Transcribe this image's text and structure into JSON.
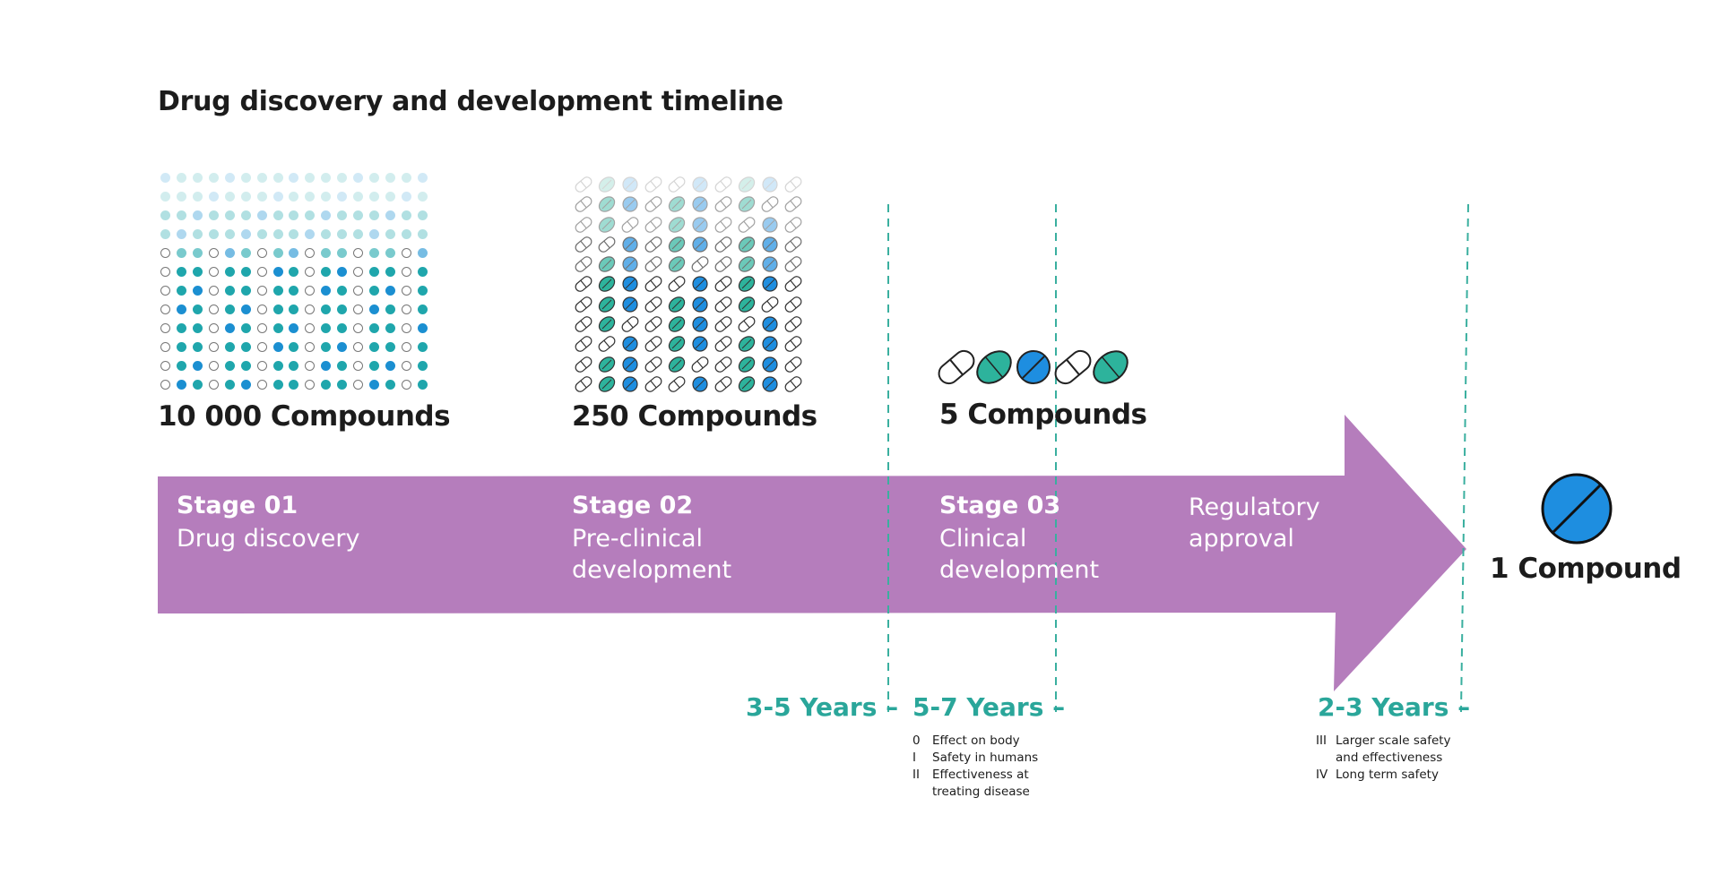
{
  "title": "Drug discovery and development timeline",
  "colors": {
    "arrow": "#b57dbc",
    "teal": "#2aa69a",
    "dashed_line": "#3aaf9f",
    "teal_dot": "#1fa6ac",
    "blue_dot": "#1b8fd1",
    "pill_blue": "#1e8ee0",
    "pill_green": "#2db39c"
  },
  "counts": {
    "stage1": "10 000 Compounds",
    "stage2": "250 Compounds",
    "stage3": "5 Compounds",
    "final": "1 Compound"
  },
  "stages": [
    {
      "number": "Stage 01",
      "name": "Drug discovery"
    },
    {
      "number": "Stage 02",
      "name": "Pre-clinical development"
    },
    {
      "number": "Stage 03",
      "name": "Clinical development"
    }
  ],
  "regulatory": "Regulatory approval",
  "durations": [
    "3-5 Years –",
    "5-7  Years –",
    "2-3 Years –"
  ],
  "clinical_phases": [
    {
      "num": "0",
      "text": "Effect on body"
    },
    {
      "num": "I",
      "text": "Safety in humans"
    },
    {
      "num": "II",
      "text": "Effectiveness at treating disease"
    }
  ],
  "approval_phases": [
    {
      "num": "III",
      "text": "Larger scale safety and effectiveness"
    },
    {
      "num": "IV",
      "text": "Long term safety"
    }
  ],
  "pills_stage3": [
    "capsule-icon",
    "green-tablet-icon",
    "blue-tablet-icon",
    "capsule-icon",
    "green-tablet-icon"
  ],
  "final_pill": "blue-tablet-icon"
}
